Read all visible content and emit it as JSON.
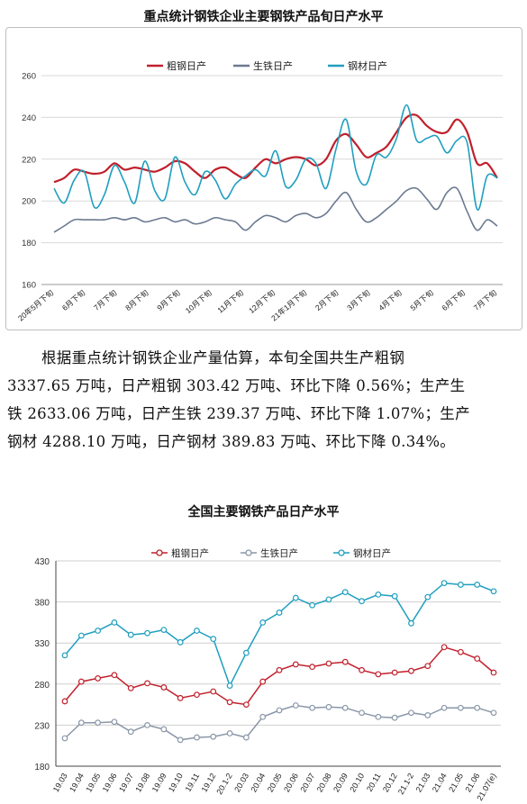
{
  "page": {
    "chart1_title": "重点统计钢铁企业主要钢铁产品旬日产水平",
    "chart2_title": "全国主要钢铁产品日产水平",
    "paragraph_lines": [
      "根据重点统计钢铁企业产量估算，本旬全国共生产粗钢",
      "3337.65 万吨，日产粗钢 303.42 万吨、环比下降 0.56%；生产生",
      "铁 2633.06 万吨，日产生铁 239.37 万吨、环比下降 1.07%；生产",
      "钢材 4288.10 万吨，日产钢材 389.83 万吨、环比下降 0.34%。"
    ]
  },
  "chart_data": [
    {
      "type": "line",
      "title": "重点统计钢铁企业主要钢铁产品旬日产水平",
      "ylim": [
        160,
        260
      ],
      "yticks": [
        160,
        180,
        200,
        220,
        240,
        260
      ],
      "xtick_labels": [
        "20年5月下旬",
        "6月下旬",
        "7月下旬",
        "8月下旬",
        "9月下旬",
        "10月下旬",
        "11月下旬",
        "12月下旬",
        "21年1月下旬",
        "2月下旬",
        "3月下旬",
        "4月下旬",
        "5月下旬",
        "6月下旬",
        "7月下旬"
      ],
      "grid": true,
      "legend": "top",
      "colors": {
        "粗钢日产": "#c0202c",
        "生铁日产": "#6b7a90",
        "钢材日产": "#1f9fbf"
      },
      "series": [
        {
          "name": "粗钢日产",
          "values": [
            209,
            211,
            215,
            214,
            213,
            214,
            218,
            215,
            216,
            215,
            214,
            216,
            219,
            218,
            214,
            211,
            215,
            216,
            213,
            211,
            216,
            220,
            218,
            220,
            221,
            220,
            217,
            220,
            229,
            232,
            227,
            221,
            223,
            226,
            233,
            240,
            241,
            236,
            233,
            233,
            239,
            233,
            218,
            218,
            211
          ]
        },
        {
          "name": "生铁日产",
          "values": [
            185,
            188,
            191,
            191,
            191,
            191,
            192,
            191,
            192,
            190,
            191,
            192,
            190,
            191,
            189,
            190,
            192,
            191,
            190,
            186,
            190,
            193,
            192,
            190,
            193,
            194,
            192,
            194,
            200,
            204,
            196,
            190,
            192,
            196,
            200,
            205,
            206,
            201,
            196,
            204,
            206,
            195,
            186,
            191,
            188
          ]
        },
        {
          "name": "钢材日产",
          "values": [
            206,
            199,
            210,
            214,
            197,
            203,
            217,
            209,
            199,
            219,
            205,
            201,
            221,
            209,
            203,
            214,
            210,
            201,
            208,
            212,
            215,
            212,
            224,
            207,
            210,
            220,
            218,
            206,
            225,
            239,
            214,
            208,
            222,
            221,
            230,
            246,
            229,
            230,
            231,
            223,
            229,
            228,
            196,
            212,
            211
          ]
        }
      ]
    },
    {
      "type": "line",
      "title": "全国主要钢铁产品日产水平",
      "ylim": [
        180,
        430
      ],
      "yticks": [
        180,
        230,
        280,
        330,
        380,
        430
      ],
      "categories": [
        "19.03",
        "19.04",
        "19.05",
        "19.06",
        "19.07",
        "19.08",
        "19.09",
        "19.10",
        "19.11",
        "19.12",
        "20.1-2",
        "20.03",
        "20.04",
        "20.05",
        "20.06",
        "20.07",
        "20.08",
        "20.09",
        "20.10",
        "20.11",
        "20.12",
        "21.1-2",
        "21.03",
        "21.04",
        "21.05",
        "21.06",
        "21.07(e)"
      ],
      "grid": true,
      "legend": "top",
      "colors": {
        "粗钢日产": "#c0202c",
        "生铁日产": "#8a97a8",
        "钢材日产": "#1f9fbf"
      },
      "series": [
        {
          "name": "粗钢日产",
          "values": [
            259,
            283,
            287,
            291,
            275,
            281,
            276,
            263,
            267,
            271,
            258,
            255,
            283,
            297,
            304,
            301,
            305,
            307,
            297,
            292,
            294,
            296,
            302,
            325,
            319,
            311,
            294
          ]
        },
        {
          "name": "生铁日产",
          "values": [
            214,
            233,
            233,
            234,
            222,
            230,
            225,
            212,
            215,
            216,
            220,
            215,
            240,
            248,
            254,
            251,
            252,
            251,
            245,
            240,
            239,
            245,
            242,
            251,
            251,
            251,
            245
          ]
        },
        {
          "name": "钢材日产",
          "values": [
            315,
            339,
            345,
            355,
            340,
            342,
            346,
            331,
            345,
            335,
            278,
            318,
            355,
            367,
            385,
            376,
            383,
            392,
            381,
            389,
            387,
            354,
            386,
            403,
            401,
            401,
            393
          ]
        }
      ]
    }
  ]
}
